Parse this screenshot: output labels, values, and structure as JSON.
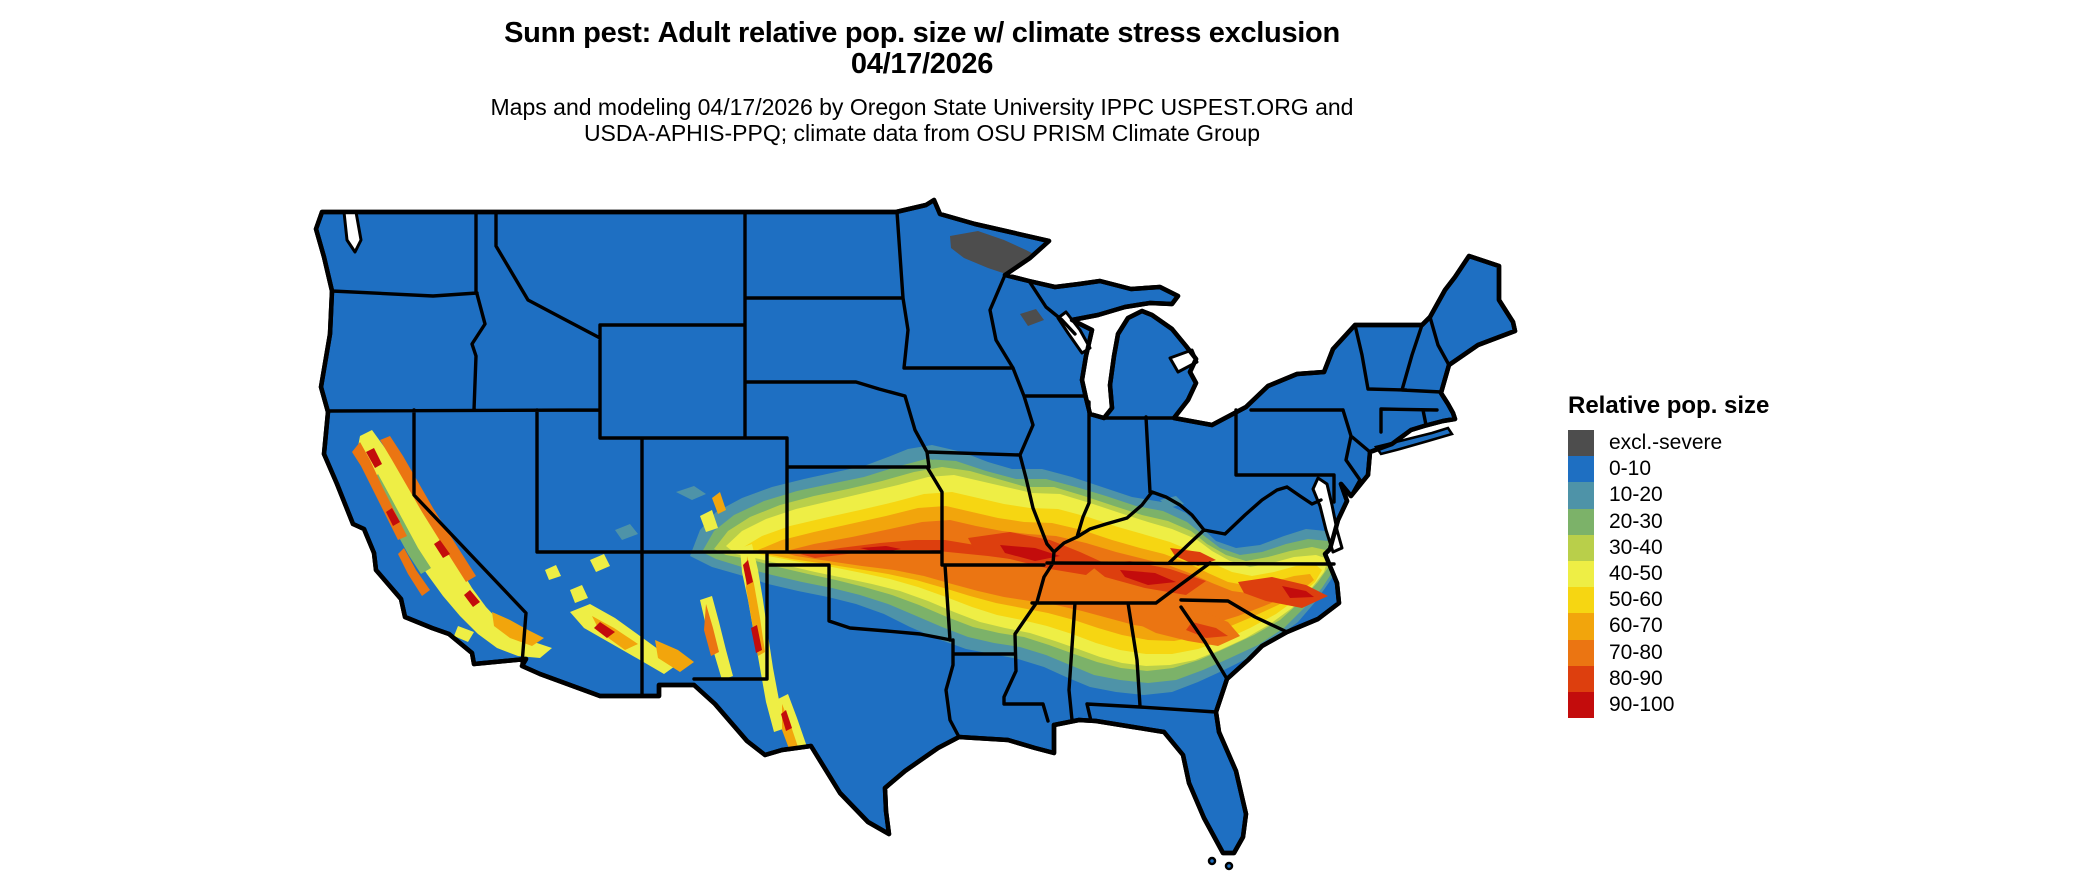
{
  "title": {
    "line1": "Sunn pest: Adult relative pop. size w/ climate stress exclusion",
    "line2": "04/17/2026"
  },
  "subtitle": {
    "line1": "Maps and modeling 04/17/2026 by Oregon State University IPPC USPEST.ORG and",
    "line2": "USDA-APHIS-PPQ; climate data from OSU PRISM Climate Group"
  },
  "legend": {
    "title": "Relative pop. size",
    "items": [
      {
        "label": "excl.-severe",
        "color": "#4d4d4d"
      },
      {
        "label": "0-10",
        "color": "#1e6fc2"
      },
      {
        "label": "10-20",
        "color": "#4e93a8"
      },
      {
        "label": "20-30",
        "color": "#7cb269"
      },
      {
        "label": "30-40",
        "color": "#b9cf4a"
      },
      {
        "label": "40-50",
        "color": "#eeee45"
      },
      {
        "label": "50-60",
        "color": "#f6d612"
      },
      {
        "label": "60-70",
        "color": "#f2a50c"
      },
      {
        "label": "70-80",
        "color": "#eb7512"
      },
      {
        "label": "80-90",
        "color": "#dd3f0e"
      },
      {
        "label": "90-100",
        "color": "#c30c0c"
      }
    ]
  },
  "map": {
    "region": "Contiguous United States",
    "ocean_color": "#ffffff",
    "border_color": "#000000",
    "base_value_class": "0-10",
    "excluded_area_class": "excl.-severe"
  }
}
